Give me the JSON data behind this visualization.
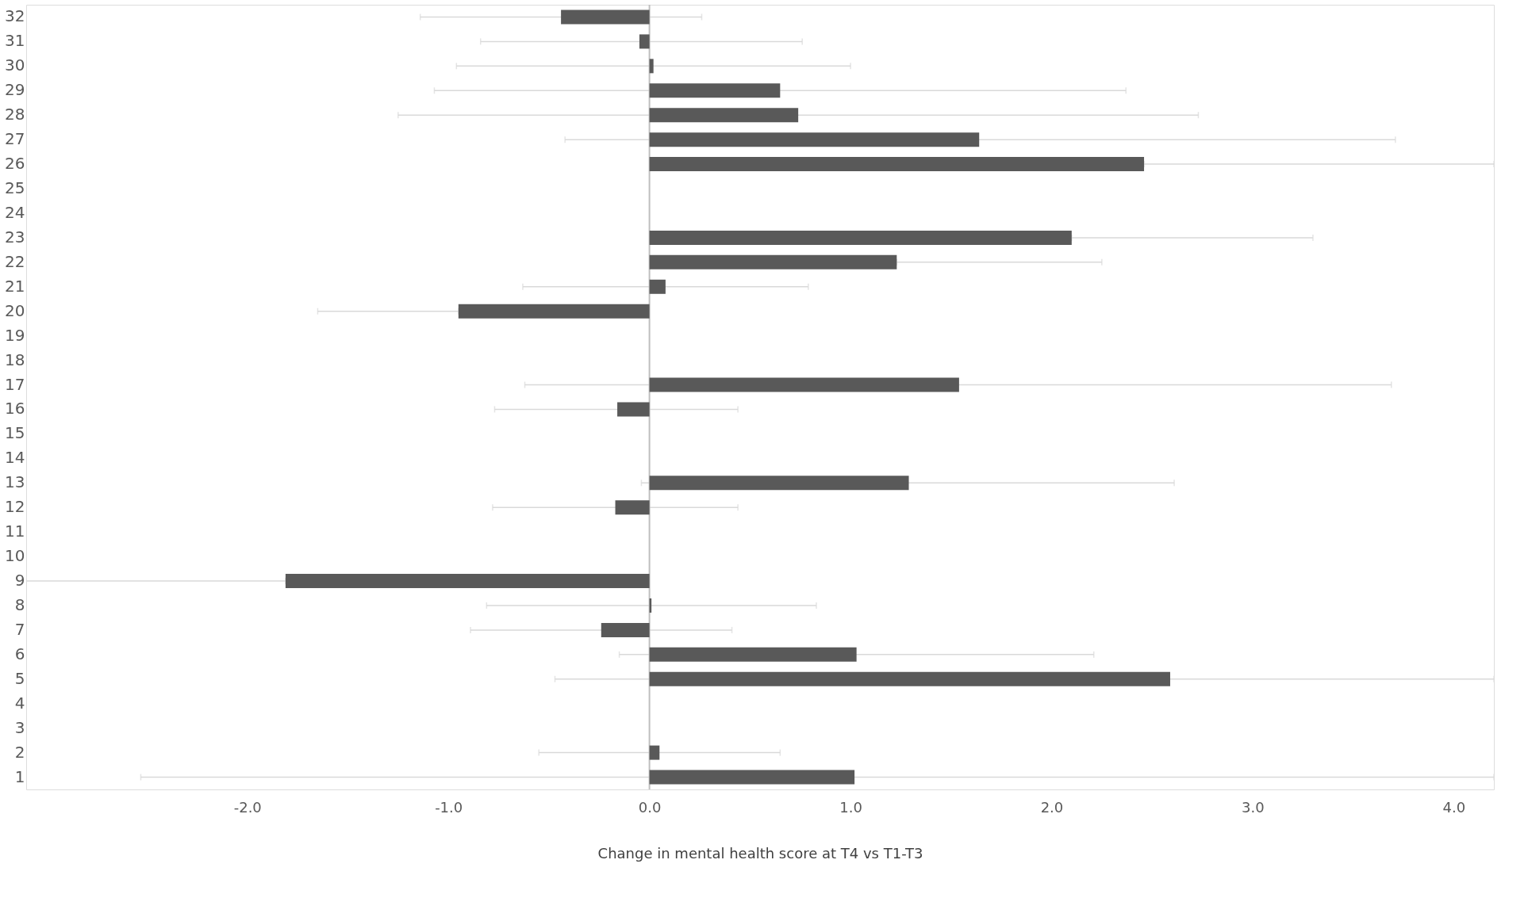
{
  "chart_data": {
    "type": "bar",
    "orientation": "horizontal",
    "xlabel": "Change in mental health score at T4 vs T1-T3",
    "categories": [
      "32",
      "31",
      "30",
      "29",
      "28",
      "27",
      "26",
      "25",
      "24",
      "23",
      "22",
      "21",
      "20",
      "19",
      "18",
      "17",
      "16",
      "15",
      "14",
      "13",
      "12",
      "11",
      "10",
      "9",
      "8",
      "7",
      "6",
      "5",
      "4",
      "3",
      "2",
      "1"
    ],
    "values": [
      -0.44,
      -0.05,
      0.02,
      0.65,
      0.74,
      1.64,
      2.46,
      null,
      null,
      2.1,
      1.23,
      0.08,
      -0.95,
      null,
      null,
      1.54,
      -0.16,
      null,
      null,
      1.29,
      -0.17,
      null,
      null,
      -1.81,
      0.01,
      -0.24,
      1.03,
      2.59,
      null,
      null,
      0.05,
      1.02
    ],
    "errors": [
      [
        -1.14,
        0.26
      ],
      [
        -0.84,
        0.76
      ],
      [
        -0.96,
        1.0
      ],
      [
        -1.07,
        2.37
      ],
      [
        -1.25,
        2.73
      ],
      [
        -0.42,
        3.71
      ],
      [
        2.46,
        4.2
      ],
      null,
      null,
      [
        2.1,
        3.3
      ],
      [
        1.23,
        2.25
      ],
      [
        -0.63,
        0.79
      ],
      [
        -1.65,
        -0.95
      ],
      null,
      null,
      [
        -0.62,
        3.69
      ],
      [
        -0.77,
        0.44
      ],
      null,
      null,
      [
        -0.04,
        2.61
      ],
      [
        -0.78,
        0.44
      ],
      null,
      null,
      [
        -3.1,
        -1.81
      ],
      [
        -0.81,
        0.83
      ],
      [
        -0.89,
        0.41
      ],
      [
        -0.15,
        2.21
      ],
      [
        -0.47,
        4.2
      ],
      null,
      null,
      [
        -0.55,
        0.65
      ],
      [
        -2.53,
        4.2
      ]
    ],
    "color": "#595959",
    "xlim": [
      -3.1,
      4.2
    ],
    "xticks": [
      {
        "value": -2,
        "label": "-2.0"
      },
      {
        "value": -1,
        "label": "-1.0"
      },
      {
        "value": 0,
        "label": "0.0"
      },
      {
        "value": 1,
        "label": "1.0"
      },
      {
        "value": 2,
        "label": "2.0"
      },
      {
        "value": 3,
        "label": "3.0"
      },
      {
        "value": 4,
        "label": "4.0"
      }
    ],
    "ref_lines": [
      {
        "axis": "x",
        "value": 0,
        "color": "#bfbfbf"
      }
    ],
    "grid": false
  }
}
